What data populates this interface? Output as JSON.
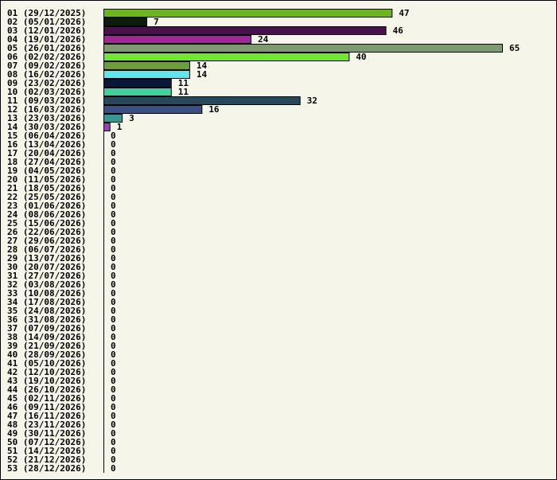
{
  "chart_data": {
    "type": "bar",
    "orientation": "horizontal",
    "title": "",
    "xlabel": "",
    "ylabel": "",
    "xlim": [
      0,
      65
    ],
    "grid": false,
    "legend": "none",
    "categories": [
      "01 (29/12/2025)",
      "02 (05/01/2026)",
      "03 (12/01/2026)",
      "04 (19/01/2026)",
      "05 (26/01/2026)",
      "06 (02/02/2026)",
      "07 (09/02/2026)",
      "08 (16/02/2026)",
      "09 (23/02/2026)",
      "10 (02/03/2026)",
      "11 (09/03/2026)",
      "12 (16/03/2026)",
      "13 (23/03/2026)",
      "14 (30/03/2026)",
      "15 (06/04/2026)",
      "16 (13/04/2026)",
      "17 (20/04/2026)",
      "18 (27/04/2026)",
      "19 (04/05/2026)",
      "20 (11/05/2026)",
      "21 (18/05/2026)",
      "22 (25/05/2026)",
      "23 (01/06/2026)",
      "24 (08/06/2026)",
      "25 (15/06/2026)",
      "26 (22/06/2026)",
      "27 (29/06/2026)",
      "28 (06/07/2026)",
      "29 (13/07/2026)",
      "30 (20/07/2026)",
      "31 (27/07/2026)",
      "32 (03/08/2026)",
      "33 (10/08/2026)",
      "34 (17/08/2026)",
      "35 (24/08/2026)",
      "36 (31/08/2026)",
      "37 (07/09/2026)",
      "38 (14/09/2026)",
      "39 (21/09/2026)",
      "40 (28/09/2026)",
      "41 (05/10/2026)",
      "42 (12/10/2026)",
      "43 (19/10/2026)",
      "44 (26/10/2026)",
      "45 (02/11/2026)",
      "46 (09/11/2026)",
      "47 (16/11/2026)",
      "48 (23/11/2026)",
      "49 (30/11/2026)",
      "50 (07/12/2026)",
      "51 (14/12/2026)",
      "52 (21/12/2026)",
      "53 (28/12/2026)"
    ],
    "values": [
      47,
      7,
      46,
      24,
      65,
      40,
      14,
      14,
      11,
      11,
      32,
      16,
      3,
      1,
      0,
      0,
      0,
      0,
      0,
      0,
      0,
      0,
      0,
      0,
      0,
      0,
      0,
      0,
      0,
      0,
      0,
      0,
      0,
      0,
      0,
      0,
      0,
      0,
      0,
      0,
      0,
      0,
      0,
      0,
      0,
      0,
      0,
      0,
      0,
      0,
      0,
      0,
      0
    ],
    "colors": [
      "#6cb51f",
      "#0a1f0a",
      "#47124a",
      "#a3259a",
      "#7d9a70",
      "#6dea2b",
      "#6c9e3e",
      "#5ce6ef",
      "#071a3c",
      "#3dd39b",
      "#27485a",
      "#3a4f86",
      "#35978e",
      "#9a3cc2"
    ]
  }
}
